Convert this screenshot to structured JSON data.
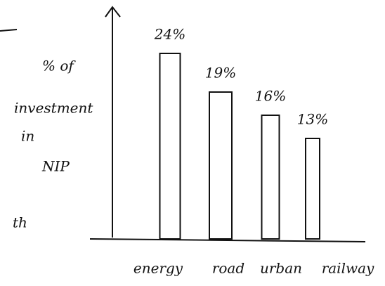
{
  "chart_data": {
    "type": "bar",
    "y_label": [
      "% of",
      "investment",
      "in",
      "NIP"
    ],
    "categories": [
      "energy",
      "road",
      "urban",
      "railway"
    ],
    "values": [
      24,
      19,
      16,
      13
    ],
    "value_labels": [
      "24%",
      "19%",
      "16%",
      "13%"
    ],
    "color": "#ffffff",
    "ylim": [
      0,
      30
    ],
    "annotations": [
      "th"
    ]
  }
}
